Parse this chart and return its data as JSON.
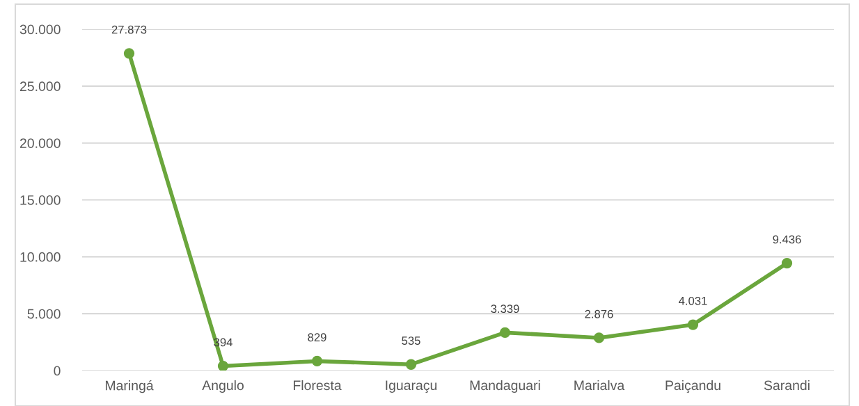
{
  "chart_data": {
    "type": "line",
    "categories": [
      "Maringá",
      "Angulo",
      "Floresta",
      "Iguaraçu",
      "Mandaguari",
      "Marialva",
      "Paiçandu",
      "Sarandi"
    ],
    "series": [
      {
        "color": "#6aa63c",
        "values": [
          27873,
          394,
          829,
          535,
          3339,
          2876,
          4031,
          9436
        ],
        "value_labels": [
          "27.873",
          "394",
          "829",
          "535",
          "3.339",
          "2.876",
          "4.031",
          "9.436"
        ]
      }
    ],
    "ylim": [
      0,
      30000
    ],
    "yticks": [
      {
        "value": 0,
        "label": "0"
      },
      {
        "value": 5000,
        "label": "5.000"
      },
      {
        "value": 10000,
        "label": "10.000"
      },
      {
        "value": 15000,
        "label": "15.000"
      },
      {
        "value": 20000,
        "label": "20.000"
      },
      {
        "value": 25000,
        "label": "25.000"
      },
      {
        "value": 30000,
        "label": "30.000"
      }
    ],
    "grid": "y",
    "marker": "circle",
    "line_style": "solid",
    "legend": false
  }
}
